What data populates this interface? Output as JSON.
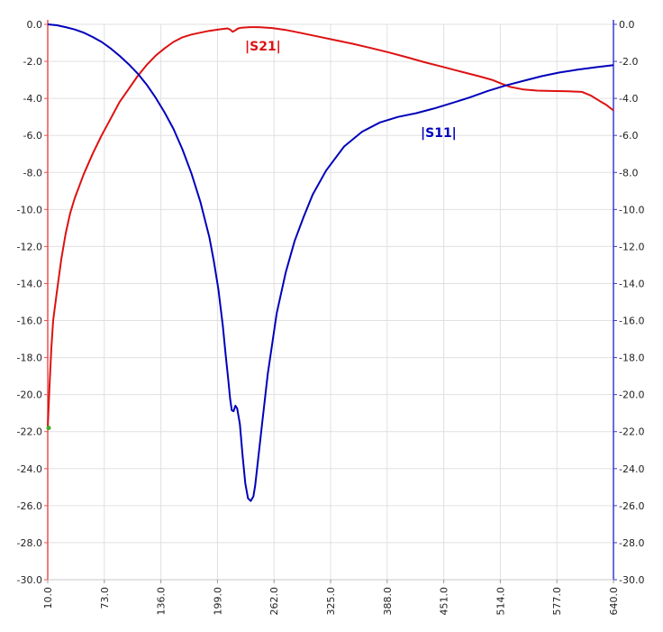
{
  "chart_data": {
    "type": "line",
    "title": "",
    "xlabel": "",
    "ylabel": "",
    "xlim": [
      10.0,
      640.0
    ],
    "ylim_left": [
      -30.0,
      0.0
    ],
    "ylim_right": [
      -30.0,
      0.0
    ],
    "x_ticks": [
      "10.0",
      "73.0",
      "136.0",
      "199.0",
      "262.0",
      "325.0",
      "388.0",
      "451.0",
      "514.0",
      "577.0",
      "640.0"
    ],
    "y_ticks_left": [
      "0.0",
      "-2.0",
      "-4.0",
      "-6.0",
      "-8.0",
      "-10.0",
      "-12.0",
      "-14.0",
      "-16.0",
      "-18.0",
      "-20.0",
      "-22.0",
      "-24.0",
      "-26.0",
      "-28.0",
      "-30.0"
    ],
    "y_ticks_right": [
      "0.0",
      "-2.0",
      "-4.0",
      "-6.0",
      "-8.0",
      "-10.0",
      "-12.0",
      "-14.0",
      "-16.0",
      "-18.0",
      "-20.0",
      "-22.0",
      "-24.0",
      "-26.0",
      "-28.0",
      "-30.0"
    ],
    "grid": true,
    "colors": {
      "s21": "#dd1111",
      "s11": "#0000bb",
      "left_axis": "#e85050",
      "right_axis": "#3a3ad0",
      "grid": "#e0e0e0",
      "marker": "#44aa22"
    },
    "series": [
      {
        "name": "|S21|",
        "color": "#dd1111",
        "axis": "left",
        "x": [
          10,
          12,
          14,
          16,
          20,
          25,
          30,
          35,
          40,
          50,
          60,
          70,
          80,
          90,
          100,
          110,
          120,
          130,
          140,
          150,
          160,
          170,
          180,
          190,
          200,
          205,
          210,
          213,
          216,
          219,
          222,
          226,
          235,
          245,
          260,
          275,
          290,
          310,
          330,
          350,
          370,
          390,
          410,
          430,
          450,
          470,
          490,
          505,
          515,
          525,
          540,
          555,
          570,
          590,
          605,
          615,
          625,
          632,
          640
        ],
        "y": [
          -21.8,
          -19.5,
          -17.5,
          -16.0,
          -14.5,
          -12.7,
          -11.3,
          -10.2,
          -9.4,
          -8.1,
          -7.0,
          -6.0,
          -5.1,
          -4.2,
          -3.5,
          -2.8,
          -2.2,
          -1.7,
          -1.3,
          -0.95,
          -0.7,
          -0.55,
          -0.45,
          -0.35,
          -0.28,
          -0.25,
          -0.22,
          -0.28,
          -0.4,
          -0.32,
          -0.22,
          -0.18,
          -0.15,
          -0.15,
          -0.2,
          -0.3,
          -0.45,
          -0.65,
          -0.85,
          -1.05,
          -1.28,
          -1.52,
          -1.78,
          -2.05,
          -2.3,
          -2.55,
          -2.8,
          -3.0,
          -3.2,
          -3.38,
          -3.52,
          -3.58,
          -3.6,
          -3.62,
          -3.65,
          -3.85,
          -4.15,
          -4.35,
          -4.65
        ]
      },
      {
        "name": "|S11|",
        "color": "#0000bb",
        "axis": "right",
        "x": [
          10,
          20,
          30,
          40,
          50,
          60,
          70,
          80,
          90,
          100,
          110,
          120,
          130,
          140,
          150,
          160,
          170,
          180,
          190,
          195,
          200,
          205,
          208,
          211,
          213,
          215,
          217,
          219,
          221,
          224,
          227,
          230,
          233,
          236,
          239,
          241,
          244,
          248,
          255,
          265,
          275,
          285,
          295,
          305,
          320,
          340,
          360,
          380,
          400,
          420,
          440,
          460,
          480,
          500,
          520,
          540,
          560,
          580,
          600,
          620,
          640
        ],
        "y": [
          0.0,
          -0.05,
          -0.15,
          -0.28,
          -0.45,
          -0.68,
          -0.95,
          -1.3,
          -1.7,
          -2.15,
          -2.65,
          -3.25,
          -3.95,
          -4.75,
          -5.65,
          -6.75,
          -8.05,
          -9.6,
          -11.5,
          -12.8,
          -14.3,
          -16.3,
          -17.8,
          -19.2,
          -20.2,
          -20.85,
          -20.9,
          -20.6,
          -20.75,
          -21.6,
          -23.3,
          -24.8,
          -25.6,
          -25.75,
          -25.5,
          -24.9,
          -23.6,
          -21.9,
          -18.9,
          -15.6,
          -13.4,
          -11.7,
          -10.4,
          -9.2,
          -7.9,
          -6.6,
          -5.8,
          -5.3,
          -5.0,
          -4.8,
          -4.55,
          -4.25,
          -3.95,
          -3.6,
          -3.3,
          -3.05,
          -2.8,
          -2.6,
          -2.45,
          -2.32,
          -2.2
        ]
      }
    ]
  }
}
